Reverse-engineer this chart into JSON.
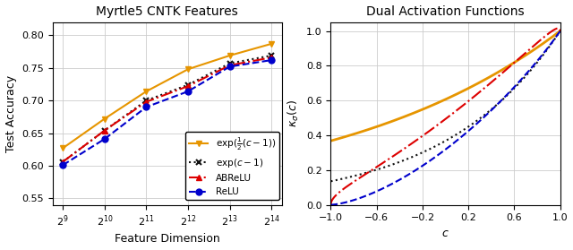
{
  "left_title": "Myrtle5 CNTK Features",
  "right_title": "Dual Activation Functions",
  "left_xlabel": "Feature Dimension",
  "left_ylabel": "Test Accuracy",
  "right_xlabel": "c",
  "x_dims_log": [
    9,
    10,
    11,
    12,
    13,
    14
  ],
  "x_labels": [
    "$2^{9}$",
    "$2^{10}$",
    "$2^{11}$",
    "$2^{12}$",
    "$2^{13}$",
    "$2^{14}$"
  ],
  "exp_half": [
    0.627,
    0.672,
    0.714,
    0.748,
    0.769,
    0.787
  ],
  "exp_one": [
    0.606,
    0.654,
    0.7,
    0.724,
    0.757,
    0.769
  ],
  "abrelu": [
    0.606,
    0.654,
    0.698,
    0.722,
    0.754,
    0.766
  ],
  "relu": [
    0.601,
    0.641,
    0.69,
    0.714,
    0.752,
    0.762
  ],
  "left_ylim": [
    0.54,
    0.82
  ],
  "left_yticks": [
    0.55,
    0.6,
    0.65,
    0.7,
    0.75,
    0.8
  ],
  "color_orange": "#e69500",
  "color_black": "#111111",
  "color_red": "#dd0000",
  "color_blue": "#0000cc"
}
